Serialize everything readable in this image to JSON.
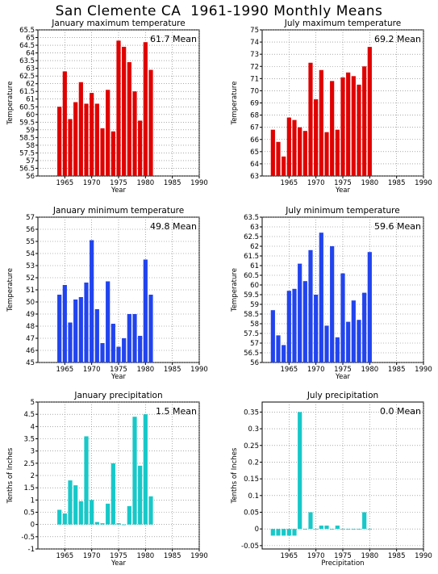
{
  "page_title": "San Clemente CA  1961-1990 Monthly Means",
  "colors": {
    "red": "#e00000",
    "blue": "#2244ee",
    "cyan": "#18c8c8"
  },
  "chart_data": [
    {
      "type": "bar",
      "title": "January maximum temperature",
      "ylabel": "Temperature",
      "xlabel": "Year",
      "mean_label": "61.7 Mean",
      "color": "red",
      "xlim": [
        1960,
        1990
      ],
      "ylim": [
        56,
        65.5
      ],
      "x_ticks": [
        1965,
        1970,
        1975,
        1980,
        1985,
        1990
      ],
      "y_ticks": [
        "56",
        "56.5",
        "57",
        "57.5",
        "58",
        "58.5",
        "59",
        "59.5",
        "60",
        "60.5",
        "61",
        "61.5",
        "62",
        "62.5",
        "63",
        "63.5",
        "64",
        "64.5",
        "65",
        "65.5"
      ],
      "x": [
        1964,
        1965,
        1966,
        1967,
        1968,
        1969,
        1970,
        1971,
        1972,
        1973,
        1974,
        1975,
        1976,
        1977,
        1978,
        1979,
        1980,
        1981
      ],
      "values": [
        60.5,
        62.8,
        59.7,
        60.8,
        62.1,
        60.7,
        61.4,
        60.7,
        59.1,
        61.6,
        58.9,
        64.8,
        64.4,
        63.4,
        61.5,
        59.6,
        64.7,
        62.9
      ]
    },
    {
      "type": "bar",
      "title": "July maximum temperature",
      "ylabel": "Temperature",
      "xlabel": "Year",
      "mean_label": "69.2 Mean",
      "color": "red",
      "xlim": [
        1960,
        1990
      ],
      "ylim": [
        63,
        75
      ],
      "x_ticks": [
        1965,
        1970,
        1975,
        1980,
        1985,
        1990
      ],
      "y_ticks": [
        "63",
        "64",
        "65",
        "66",
        "67",
        "68",
        "69",
        "70",
        "71",
        "72",
        "73",
        "74",
        "75"
      ],
      "x": [
        1962,
        1963,
        1964,
        1965,
        1966,
        1967,
        1968,
        1969,
        1970,
        1971,
        1972,
        1973,
        1974,
        1975,
        1976,
        1977,
        1978,
        1979,
        1980,
        1981
      ],
      "values": [
        66.8,
        65.8,
        64.6,
        67.8,
        67.6,
        67.0,
        66.7,
        72.3,
        69.3,
        71.7,
        66.6,
        70.8,
        66.8,
        71.1,
        71.5,
        71.2,
        70.5,
        72.0,
        73.6,
        null
      ]
    },
    {
      "type": "bar",
      "title": "January minimum temperature",
      "ylabel": "Temperature",
      "xlabel": "Year",
      "mean_label": "49.8 Mean",
      "color": "blue",
      "xlim": [
        1960,
        1990
      ],
      "ylim": [
        45,
        57
      ],
      "x_ticks": [
        1965,
        1970,
        1975,
        1980,
        1985,
        1990
      ],
      "y_ticks": [
        "45",
        "46",
        "47",
        "48",
        "49",
        "50",
        "51",
        "52",
        "53",
        "54",
        "55",
        "56",
        "57"
      ],
      "x": [
        1964,
        1965,
        1966,
        1967,
        1968,
        1969,
        1970,
        1971,
        1972,
        1973,
        1974,
        1975,
        1976,
        1977,
        1978,
        1979,
        1980,
        1981
      ],
      "values": [
        50.6,
        51.4,
        48.3,
        50.2,
        50.4,
        51.6,
        55.1,
        49.4,
        46.6,
        51.7,
        48.2,
        46.3,
        47.0,
        49.0,
        49.0,
        47.2,
        53.5,
        50.6
      ]
    },
    {
      "type": "bar",
      "title": "July minimum temperature",
      "ylabel": "Temperature",
      "xlabel": "Year",
      "mean_label": "59.6 Mean",
      "color": "blue",
      "xlim": [
        1960,
        1990
      ],
      "ylim": [
        56,
        63.5
      ],
      "x_ticks": [
        1965,
        1970,
        1975,
        1980,
        1985,
        1990
      ],
      "y_ticks": [
        "56",
        "56.5",
        "57",
        "57.5",
        "58",
        "58.5",
        "59",
        "59.5",
        "60",
        "60.5",
        "61",
        "61.5",
        "62",
        "62.5",
        "63",
        "63.5"
      ],
      "x": [
        1962,
        1963,
        1964,
        1965,
        1966,
        1967,
        1968,
        1969,
        1970,
        1971,
        1972,
        1973,
        1974,
        1975,
        1976,
        1977,
        1978,
        1979,
        1980,
        1981
      ],
      "values": [
        58.7,
        57.4,
        56.9,
        59.7,
        59.8,
        61.1,
        60.2,
        61.8,
        59.5,
        62.7,
        57.9,
        62.0,
        57.3,
        60.6,
        58.1,
        59.2,
        58.2,
        59.6,
        61.7,
        null
      ]
    },
    {
      "type": "bar",
      "title": "January precipitation",
      "ylabel": "Tenths of Inches",
      "xlabel": "Year",
      "mean_label": "1.5 Mean",
      "color": "cyan",
      "xlim": [
        1960,
        1990
      ],
      "ylim": [
        -1,
        5
      ],
      "x_ticks": [
        1965,
        1970,
        1975,
        1980,
        1985,
        1990
      ],
      "y_ticks": [
        "-1",
        "-0.5",
        "0",
        "0.5",
        "1",
        "1.5",
        "2",
        "2.5",
        "3",
        "3.5",
        "4",
        "4.5",
        "5"
      ],
      "x": [
        1964,
        1965,
        1966,
        1967,
        1968,
        1969,
        1970,
        1971,
        1972,
        1973,
        1974,
        1975,
        1976,
        1977,
        1978,
        1979,
        1980,
        1981
      ],
      "values": [
        0.6,
        0.45,
        1.8,
        1.6,
        0.95,
        3.6,
        1.0,
        0.1,
        0.05,
        0.85,
        2.5,
        0.05,
        0.0,
        0.75,
        4.4,
        2.4,
        4.5,
        1.15
      ]
    },
    {
      "type": "bar",
      "title": "July precipitation",
      "ylabel": "Tenths of Inches",
      "xlabel": "Precipitation",
      "mean_label": "0.0 Mean",
      "color": "cyan",
      "xlim": [
        1960,
        1990
      ],
      "ylim": [
        -0.06,
        0.38
      ],
      "x_ticks": [
        1965,
        1970,
        1975,
        1980,
        1985,
        1990
      ],
      "y_ticks": [
        "-0.05",
        "0",
        "0.05",
        "0.1",
        "0.15",
        "0.2",
        "0.25",
        "0.3",
        "0.35"
      ],
      "x": [
        1962,
        1963,
        1964,
        1965,
        1966,
        1967,
        1968,
        1969,
        1970,
        1971,
        1972,
        1973,
        1974,
        1975,
        1976,
        1977,
        1978,
        1979,
        1980,
        1981
      ],
      "values": [
        -0.02,
        -0.02,
        -0.02,
        -0.02,
        -0.02,
        0.35,
        0.0,
        0.05,
        0.0,
        0.01,
        0.01,
        0.0,
        0.01,
        0.0,
        0.0,
        0.0,
        0.0,
        0.05,
        0.0,
        null
      ]
    }
  ]
}
